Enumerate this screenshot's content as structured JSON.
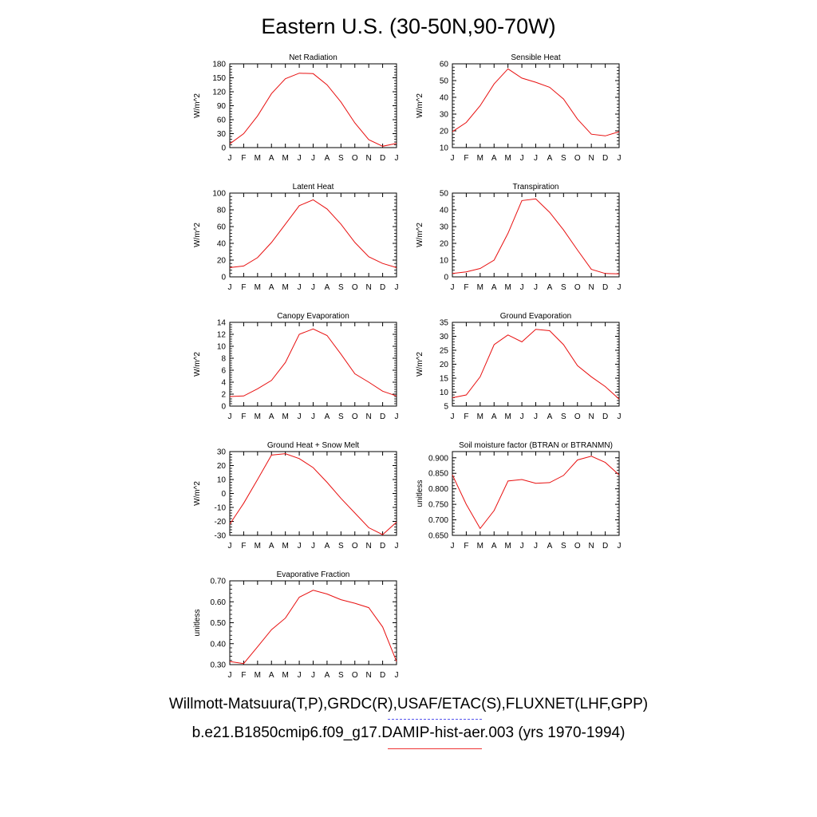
{
  "title": "Eastern U.S. (30-50N,90-70W)",
  "series_color": "#e81010",
  "legend": {
    "line1": "Willmott-Matsuura(T,P),GRDC(R),USAF/ETAC(S),FLUXNET(LHF,GPP)",
    "line1_color": "#5555ee",
    "line1_style": "dashed",
    "line2": "b.e21.B1850cmip6.f09_g17.DAMIP-hist-aer.003 (yrs 1970-1994)",
    "line2_color": "#ee3333",
    "line2_style": "solid"
  },
  "chart_data": [
    {
      "type": "line",
      "title": "Net Radiation",
      "ylabel": "W/m^2",
      "categories": [
        "J",
        "F",
        "M",
        "A",
        "M",
        "J",
        "J",
        "A",
        "S",
        "O",
        "N",
        "D",
        "J"
      ],
      "ylim": [
        0,
        180
      ],
      "yticks": [
        "0",
        "30",
        "60",
        "90",
        "120",
        "150",
        "180"
      ],
      "values": [
        8,
        30,
        68,
        116,
        148,
        160,
        159,
        135,
        98,
        53,
        17,
        3,
        9
      ]
    },
    {
      "type": "line",
      "title": "Sensible Heat",
      "ylabel": "W/m^2",
      "categories": [
        "J",
        "F",
        "M",
        "A",
        "M",
        "J",
        "J",
        "A",
        "S",
        "O",
        "N",
        "D",
        "J"
      ],
      "ylim": [
        10,
        60
      ],
      "yticks": [
        "10",
        "20",
        "30",
        "40",
        "50",
        "60"
      ],
      "values": [
        19.5,
        25,
        35,
        48,
        57,
        51.5,
        49,
        46,
        39,
        27,
        18,
        17,
        19.5
      ]
    },
    {
      "type": "line",
      "title": "Latent Heat",
      "ylabel": "W/m^2",
      "categories": [
        "J",
        "F",
        "M",
        "A",
        "M",
        "J",
        "J",
        "A",
        "S",
        "O",
        "N",
        "D",
        "J"
      ],
      "ylim": [
        0,
        100
      ],
      "yticks": [
        "0",
        "20",
        "40",
        "60",
        "80",
        "100"
      ],
      "values": [
        11,
        13,
        23,
        41,
        63,
        85,
        92,
        81,
        63,
        41,
        24,
        16,
        11
      ]
    },
    {
      "type": "line",
      "title": "Transpiration",
      "ylabel": "W/m^2",
      "categories": [
        "J",
        "F",
        "M",
        "A",
        "M",
        "J",
        "J",
        "A",
        "S",
        "O",
        "N",
        "D",
        "J"
      ],
      "ylim": [
        0,
        50
      ],
      "yticks": [
        "0",
        "10",
        "20",
        "30",
        "40",
        "50"
      ],
      "values": [
        2,
        3,
        5,
        10,
        26,
        45.5,
        46.5,
        38.5,
        28,
        16,
        4.5,
        2,
        1.8
      ]
    },
    {
      "type": "line",
      "title": "Canopy Evaporation",
      "ylabel": "W/m^2",
      "categories": [
        "J",
        "F",
        "M",
        "A",
        "M",
        "J",
        "J",
        "A",
        "S",
        "O",
        "N",
        "D",
        "J"
      ],
      "ylim": [
        0,
        14
      ],
      "yticks": [
        "0",
        "2",
        "4",
        "6",
        "8",
        "10",
        "12",
        "14"
      ],
      "values": [
        1.6,
        1.7,
        2.9,
        4.3,
        7.3,
        12,
        12.9,
        11.8,
        8.7,
        5.4,
        4,
        2.5,
        1.7
      ]
    },
    {
      "type": "line",
      "title": "Ground Evaporation",
      "ylabel": "W/m^2",
      "categories": [
        "J",
        "F",
        "M",
        "A",
        "M",
        "J",
        "J",
        "A",
        "S",
        "O",
        "N",
        "D",
        "J"
      ],
      "ylim": [
        5,
        35
      ],
      "yticks": [
        "5",
        "10",
        "15",
        "20",
        "25",
        "30",
        "35"
      ],
      "values": [
        8,
        9,
        15.5,
        27,
        30.5,
        28,
        32.5,
        32,
        27,
        19.5,
        15.5,
        12,
        7.5
      ]
    },
    {
      "type": "line",
      "title": "Ground Heat + Snow Melt",
      "ylabel": "W/m^2",
      "categories": [
        "J",
        "F",
        "M",
        "A",
        "M",
        "J",
        "J",
        "A",
        "S",
        "O",
        "N",
        "D",
        "J"
      ],
      "ylim": [
        -30,
        30
      ],
      "yticks": [
        "-30",
        "-20",
        "-10",
        "0",
        "10",
        "20",
        "30"
      ],
      "values": [
        -22,
        -7,
        10,
        27.5,
        28.5,
        25,
        18.5,
        8,
        -3.5,
        -14,
        -24.5,
        -29.5,
        -20.5
      ]
    },
    {
      "type": "line",
      "title": "Soil moisture factor (BTRAN or BTRANMN)",
      "ylabel": "unitless",
      "categories": [
        "J",
        "F",
        "M",
        "A",
        "M",
        "J",
        "J",
        "A",
        "S",
        "O",
        "N",
        "D",
        "J"
      ],
      "ylim": [
        0.65,
        0.92
      ],
      "yticks": [
        "0.650",
        "0.700",
        "0.750",
        "0.800",
        "0.850",
        "0.900"
      ],
      "ytick_values": [
        0.65,
        0.7,
        0.75,
        0.8,
        0.85,
        0.9
      ],
      "values": [
        0.845,
        0.75,
        0.672,
        0.73,
        0.825,
        0.83,
        0.818,
        0.82,
        0.843,
        0.893,
        0.905,
        0.885,
        0.845
      ]
    },
    {
      "type": "line",
      "title": "Evaporative Fraction",
      "ylabel": "unitless",
      "categories": [
        "J",
        "F",
        "M",
        "A",
        "M",
        "J",
        "J",
        "A",
        "S",
        "O",
        "N",
        "D",
        "J"
      ],
      "ylim": [
        0.3,
        0.7
      ],
      "yticks": [
        "0.30",
        "0.40",
        "0.50",
        "0.60",
        "0.70"
      ],
      "values": [
        0.315,
        0.305,
        0.385,
        0.467,
        0.522,
        0.622,
        0.655,
        0.637,
        0.61,
        0.593,
        0.572,
        0.48,
        0.315
      ]
    }
  ]
}
